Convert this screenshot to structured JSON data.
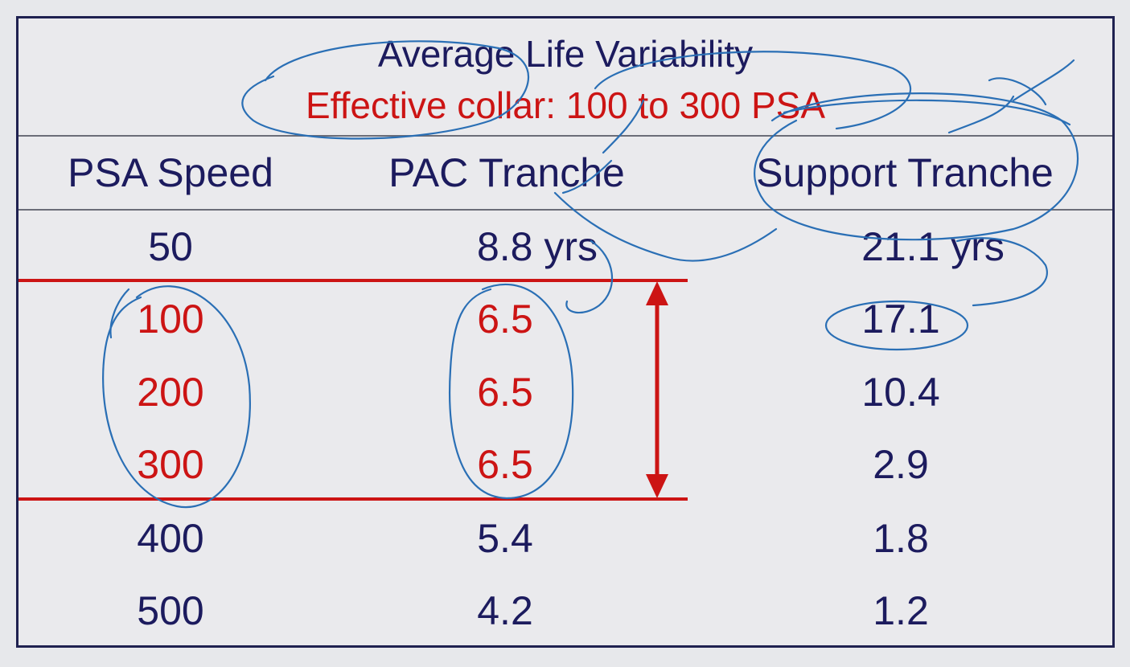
{
  "slide": {
    "title": "Average Life Variability",
    "subtitle": "Effective collar: 100 to 300 PSA"
  },
  "table": {
    "headers": [
      "PSA Speed",
      "PAC Tranche",
      "Support Tranche"
    ],
    "rows": [
      {
        "psa": "50",
        "pac": "8.8 yrs",
        "support": "21.1 yrs",
        "in_collar": false
      },
      {
        "psa": "100",
        "pac": "6.5",
        "support": "17.1",
        "in_collar": true
      },
      {
        "psa": "200",
        "pac": "6.5",
        "support": "10.4",
        "in_collar": true
      },
      {
        "psa": "300",
        "pac": "6.5",
        "support": "2.9",
        "in_collar": true
      },
      {
        "psa": "400",
        "pac": "5.4",
        "support": "1.8",
        "in_collar": false
      },
      {
        "psa": "500",
        "pac": "4.2",
        "support": "1.2",
        "in_collar": false
      }
    ]
  },
  "colors": {
    "navy_text": "#1c1b5e",
    "collar_red": "#cc1414",
    "ink_annotation": "#2a6fb5",
    "background": "#eaeaed",
    "border": "#1f2150"
  },
  "annotations": {
    "ink_icon": "handwritten-ink-marks",
    "arrow_icon": "double-headed-arrow"
  }
}
